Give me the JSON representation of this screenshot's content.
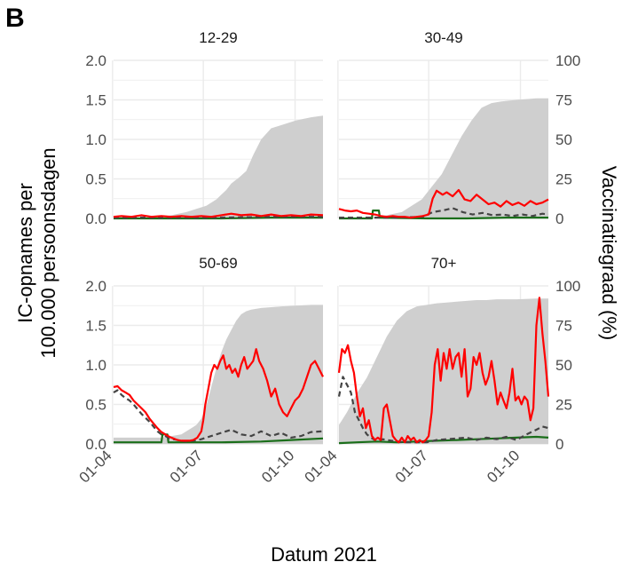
{
  "panel_letter": "B",
  "axis": {
    "left_label_line1": "IC-opnames per",
    "left_label_line2": "100.000 persoonsdagen",
    "right_label": "Vaccinatiegraad (%)",
    "x_label": "Datum 2021"
  },
  "colors": {
    "observed": "#ff0000",
    "expected_dashed": "#444444",
    "vaccinated_green": "#1a6e1a",
    "coverage_fill": "#cfcfcf",
    "grid": "#ebebeb"
  },
  "chart_data": {
    "type": "line",
    "xlabel": "Datum 2021",
    "ylabel": "IC-opnames per 100.000 persoonsdagen",
    "y2label": "Vaccinatiegraad (%)",
    "x_unit": "day of year 2021",
    "x_range": [
      92,
      302
    ],
    "x_ticks": [
      91,
      182,
      274
    ],
    "x_tick_labels": [
      "01-04",
      "01-07",
      "01-10"
    ],
    "ylim": [
      0,
      2.0
    ],
    "y_ticks": [
      0.0,
      0.5,
      1.0,
      1.5,
      2.0
    ],
    "y_tick_labels": [
      "0.0",
      "0.5",
      "1.0",
      "1.5",
      "2.0"
    ],
    "y2lim": [
      0,
      100
    ],
    "y2_ticks": [
      0,
      25,
      50,
      75,
      100
    ],
    "y2_tick_labels": [
      "0",
      "25",
      "50",
      "75",
      "100"
    ],
    "grid": true,
    "panels": [
      {
        "title": "12-29",
        "coverage": {
          "x": [
            92,
            130,
            150,
            165,
            175,
            185,
            195,
            200,
            205,
            210,
            218,
            225,
            232,
            240,
            250,
            260,
            275,
            290,
            302
          ],
          "y": [
            0,
            0,
            2,
            4,
            6,
            8,
            12,
            15,
            18,
            22,
            26,
            30,
            40,
            50,
            57,
            59,
            62,
            64,
            65
          ]
        },
        "series": [
          {
            "x": [
              92,
              100,
              110,
              120,
              130,
              140,
              150,
              160,
              170,
              180,
              190,
              200,
              210,
              220,
              230,
              240,
              250,
              260,
              270,
              280,
              290,
              302
            ],
            "y": [
              0.02,
              0.03,
              0.02,
              0.04,
              0.02,
              0.03,
              0.02,
              0.03,
              0.02,
              0.03,
              0.02,
              0.04,
              0.06,
              0.04,
              0.05,
              0.03,
              0.05,
              0.03,
              0.04,
              0.03,
              0.05,
              0.04
            ]
          },
          {
            "x": [
              92,
              150,
              200,
              250,
              302
            ],
            "y": [
              0.01,
              0.01,
              0.01,
              0.02,
              0.02
            ]
          },
          {
            "x": [
              92,
              150,
              200,
              250,
              302
            ],
            "y": [
              0.0,
              0.0,
              0.0,
              0.01,
              0.01
            ]
          }
        ]
      },
      {
        "title": "30-49",
        "coverage": {
          "x": [
            92,
            120,
            140,
            155,
            165,
            175,
            185,
            195,
            205,
            215,
            225,
            235,
            245,
            255,
            270,
            290,
            302
          ],
          "y": [
            0,
            0,
            2,
            4,
            8,
            12,
            20,
            28,
            40,
            52,
            62,
            70,
            73,
            74,
            75,
            76,
            76
          ]
        },
        "series": [
          {
            "x": [
              92,
              98,
              104,
              110,
              116,
              122,
              128,
              134,
              140,
              146,
              152,
              158,
              164,
              170,
              176,
              182,
              186,
              190,
              196,
              200,
              206,
              212,
              218,
              224,
              230,
              236,
              242,
              248,
              254,
              260,
              266,
              272,
              278,
              284,
              290,
              296,
              302
            ],
            "y": [
              0.12,
              0.1,
              0.09,
              0.1,
              0.07,
              0.06,
              0.05,
              0.03,
              0.02,
              0.03,
              0.02,
              0.02,
              0.01,
              0.02,
              0.03,
              0.05,
              0.25,
              0.35,
              0.3,
              0.33,
              0.28,
              0.36,
              0.24,
              0.22,
              0.3,
              0.24,
              0.18,
              0.2,
              0.15,
              0.22,
              0.17,
              0.2,
              0.16,
              0.22,
              0.18,
              0.2,
              0.24
            ]
          },
          {
            "x": [
              92,
              150,
              176,
              186,
              196,
              206,
              216,
              226,
              236,
              246,
              256,
              266,
              276,
              286,
              296,
              302
            ],
            "y": [
              0.01,
              0.01,
              0.02,
              0.08,
              0.1,
              0.13,
              0.08,
              0.05,
              0.07,
              0.04,
              0.05,
              0.03,
              0.05,
              0.03,
              0.06,
              0.05
            ]
          },
          {
            "x": [
              92,
              125,
              126,
              132,
              133,
              180,
              220,
              260,
              302
            ],
            "y": [
              0.0,
              0.0,
              0.1,
              0.1,
              0.01,
              0.0,
              0.0,
              0.01,
              0.01
            ]
          }
        ]
      },
      {
        "title": "50-69",
        "coverage": {
          "x": [
            92,
            125,
            140,
            150,
            160,
            165,
            170,
            175,
            180,
            185,
            190,
            195,
            200,
            205,
            210,
            215,
            220,
            225,
            230,
            240,
            250,
            260,
            275,
            290,
            302
          ],
          "y": [
            4,
            4,
            4,
            5,
            6,
            8,
            10,
            12,
            16,
            24,
            36,
            48,
            58,
            66,
            72,
            78,
            82,
            84,
            85,
            86,
            86.5,
            87,
            87.5,
            88,
            88
          ]
        },
        "series": [
          {
            "x": [
              92,
              96,
              100,
              104,
              108,
              112,
              116,
              120,
              124,
              128,
              132,
              136,
              140,
              144,
              148,
              152,
              156,
              160,
              164,
              168,
              172,
              176,
              180,
              182,
              184,
              187,
              190,
              193,
              196,
              199,
              202,
              205,
              208,
              211,
              214,
              217,
              220,
              223,
              226,
              229,
              232,
              235,
              238,
              242,
              246,
              250,
              254,
              258,
              262,
              266,
              270,
              274,
              278,
              282,
              286,
              290,
              294,
              298,
              302
            ],
            "y": [
              0.72,
              0.73,
              0.68,
              0.65,
              0.62,
              0.55,
              0.5,
              0.45,
              0.4,
              0.32,
              0.26,
              0.2,
              0.15,
              0.12,
              0.09,
              0.07,
              0.05,
              0.04,
              0.04,
              0.04,
              0.05,
              0.08,
              0.16,
              0.3,
              0.5,
              0.7,
              0.9,
              1.0,
              0.95,
              1.05,
              1.12,
              0.95,
              1.0,
              0.9,
              0.95,
              0.85,
              1.0,
              1.1,
              0.95,
              1.0,
              1.05,
              1.2,
              1.05,
              0.95,
              0.8,
              0.6,
              0.7,
              0.5,
              0.4,
              0.35,
              0.45,
              0.55,
              0.6,
              0.7,
              0.85,
              1.0,
              1.05,
              0.95,
              0.85
            ]
          },
          {
            "x": [
              92,
              96,
              100,
              104,
              108,
              112,
              116,
              120,
              124,
              128,
              132,
              136,
              140,
              144,
              148,
              152,
              156,
              160,
              164,
              168,
              172,
              176,
              180,
              190,
              200,
              210,
              220,
              230,
              240,
              250,
              260,
              270,
              280,
              290,
              302
            ],
            "y": [
              0.65,
              0.68,
              0.62,
              0.58,
              0.55,
              0.5,
              0.44,
              0.38,
              0.33,
              0.28,
              0.22,
              0.16,
              0.12,
              0.1,
              0.07,
              0.06,
              0.05,
              0.04,
              0.03,
              0.03,
              0.04,
              0.05,
              0.06,
              0.1,
              0.14,
              0.18,
              0.12,
              0.1,
              0.16,
              0.1,
              0.14,
              0.08,
              0.1,
              0.15,
              0.16
            ]
          },
          {
            "x": [
              92,
              140,
              141,
              146,
              147,
              200,
              240,
              270,
              302
            ],
            "y": [
              0.02,
              0.02,
              0.12,
              0.12,
              0.02,
              0.02,
              0.03,
              0.05,
              0.07
            ]
          }
        ]
      },
      {
        "title": "70+",
        "coverage": {
          "x": [
            92,
            100,
            110,
            120,
            130,
            140,
            150,
            160,
            170,
            180,
            185,
            190,
            200,
            210,
            220,
            230,
            240,
            250,
            270,
            290,
            302
          ],
          "y": [
            12,
            20,
            32,
            42,
            55,
            68,
            78,
            84,
            87,
            88,
            88.5,
            89,
            89.5,
            90,
            90.5,
            91,
            91,
            91.5,
            91.5,
            92,
            92
          ]
        },
        "series": [
          {
            "x": [
              92,
              95,
              98,
              101,
              104,
              107,
              110,
              113,
              116,
              119,
              122,
              125,
              128,
              131,
              134,
              137,
              140,
              143,
              146,
              149,
              152,
              155,
              158,
              161,
              164,
              167,
              170,
              173,
              176,
              179,
              182,
              185,
              188,
              191,
              194,
              197,
              200,
              203,
              206,
              209,
              212,
              215,
              218,
              221,
              224,
              227,
              230,
              233,
              236,
              239,
              242,
              245,
              248,
              251,
              254,
              257,
              260,
              263,
              266,
              269,
              272,
              275,
              278,
              281,
              284,
              287,
              290,
              293,
              296,
              299,
              302
            ],
            "y": [
              0.9,
              1.2,
              1.15,
              1.25,
              1.05,
              0.9,
              0.6,
              0.35,
              0.45,
              0.2,
              0.3,
              0.1,
              0.05,
              0.08,
              0.05,
              0.45,
              0.5,
              0.3,
              0.1,
              0.05,
              0.02,
              0.08,
              0.02,
              0.1,
              0.05,
              0.08,
              0.02,
              0.05,
              0.02,
              0.05,
              0.1,
              0.4,
              1.0,
              1.2,
              0.8,
              1.15,
              0.95,
              1.2,
              0.95,
              1.1,
              1.15,
              0.85,
              1.2,
              0.6,
              0.7,
              1.1,
              1.0,
              1.15,
              0.9,
              0.75,
              0.85,
              1.05,
              0.8,
              0.5,
              0.65,
              0.55,
              0.45,
              0.65,
              0.95,
              0.55,
              0.6,
              0.5,
              0.6,
              0.55,
              0.3,
              0.45,
              1.5,
              1.85,
              1.4,
              1.05,
              0.6
            ]
          },
          {
            "x": [
              92,
              96,
              100,
              104,
              108,
              112,
              116,
              120,
              124,
              128,
              132,
              136,
              140,
              150,
              160,
              170,
              180,
              190,
              200,
              210,
              220,
              230,
              240,
              250,
              260,
              270,
              280,
              290,
              296,
              302
            ],
            "y": [
              0.6,
              0.85,
              0.75,
              0.65,
              0.4,
              0.3,
              0.2,
              0.12,
              0.08,
              0.05,
              0.04,
              0.06,
              0.05,
              0.03,
              0.02,
              0.02,
              0.02,
              0.05,
              0.06,
              0.07,
              0.08,
              0.05,
              0.08,
              0.06,
              0.09,
              0.05,
              0.12,
              0.18,
              0.22,
              0.2
            ]
          },
          {
            "x": [
              92,
              110,
              130,
              150,
              170,
              190,
              210,
              230,
              250,
              270,
              290,
              302
            ],
            "y": [
              0.01,
              0.02,
              0.03,
              0.02,
              0.03,
              0.04,
              0.05,
              0.06,
              0.07,
              0.08,
              0.09,
              0.08
            ]
          }
        ]
      }
    ]
  }
}
